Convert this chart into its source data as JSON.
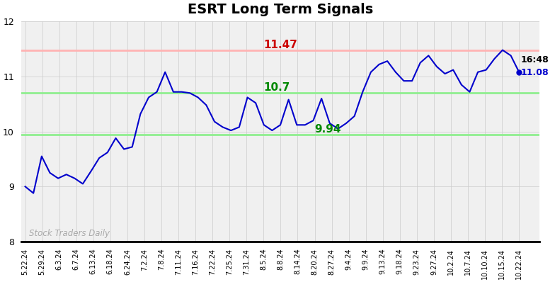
{
  "title": "ESRT Long Term Signals",
  "watermark": "Stock Traders Daily",
  "xlabels": [
    "5.22.24",
    "5.29.24",
    "6.3.24",
    "6.7.24",
    "6.13.24",
    "6.18.24",
    "6.24.24",
    "7.2.24",
    "7.8.24",
    "7.11.24",
    "7.16.24",
    "7.22.24",
    "7.25.24",
    "7.31.24",
    "8.5.24",
    "8.8.24",
    "8.14.24",
    "8.20.24",
    "8.27.24",
    "9.4.24",
    "9.9.24",
    "9.13.24",
    "9.18.24",
    "9.23.24",
    "9.27.24",
    "10.2.24",
    "10.7.24",
    "10.10.24",
    "10.15.24",
    "10.22.24"
  ],
  "yvalues": [
    9.0,
    8.88,
    9.55,
    9.25,
    9.15,
    9.22,
    9.15,
    9.05,
    9.28,
    9.52,
    9.62,
    9.88,
    9.68,
    9.72,
    10.32,
    10.62,
    10.72,
    11.08,
    10.72,
    10.72,
    10.7,
    10.62,
    10.48,
    10.18,
    10.08,
    10.02,
    10.08,
    10.62,
    10.52,
    10.12,
    10.02,
    10.12,
    10.58,
    10.12,
    10.12,
    10.2,
    10.6,
    10.15,
    10.05,
    10.15,
    10.28,
    10.72,
    11.08,
    11.22,
    11.28,
    11.08,
    10.92,
    10.92,
    11.25,
    11.38,
    11.18,
    11.05,
    11.12,
    10.85,
    10.72,
    11.08,
    11.12,
    11.32,
    11.48,
    11.38,
    11.08
  ],
  "last_value": 11.08,
  "last_time": "16:48",
  "hline_red": 11.47,
  "hline_green_upper": 10.7,
  "hline_green_lower": 9.94,
  "resistance_label": "11.47",
  "support_upper_label": "10.7",
  "support_lower_label": "9.94",
  "ylim": [
    8,
    12
  ],
  "yticks": [
    8,
    9,
    10,
    11,
    12
  ],
  "line_color": "#0000cc",
  "hline_red_color": "#ffb3b3",
  "hline_green_color": "#90ee90",
  "resistance_text_color": "#cc0000",
  "support_text_color": "#008800",
  "watermark_color": "#aaaaaa",
  "title_fontsize": 14,
  "annotation_fontsize": 11,
  "last_value_dot_color": "#0000cc",
  "bg_color": "#f0f0f0"
}
